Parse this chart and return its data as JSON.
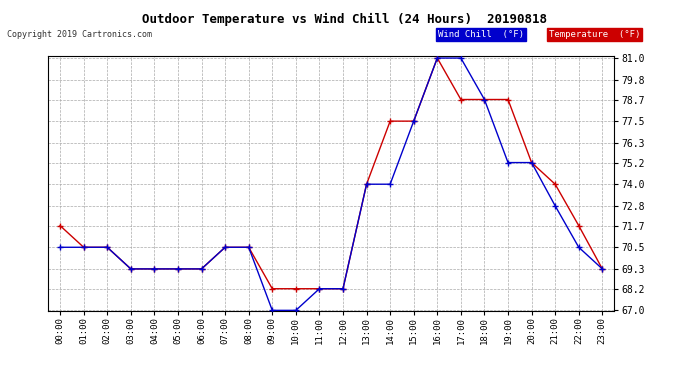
{
  "title": "Outdoor Temperature vs Wind Chill (24 Hours)  20190818",
  "copyright": "Copyright 2019 Cartronics.com",
  "background_color": "#ffffff",
  "plot_bg_color": "#ffffff",
  "grid_color": "#aaaaaa",
  "hours": [
    "00:00",
    "01:00",
    "02:00",
    "03:00",
    "04:00",
    "05:00",
    "06:00",
    "07:00",
    "08:00",
    "09:00",
    "10:00",
    "11:00",
    "12:00",
    "13:00",
    "14:00",
    "15:00",
    "16:00",
    "17:00",
    "18:00",
    "19:00",
    "20:00",
    "21:00",
    "22:00",
    "23:00"
  ],
  "temperature": [
    71.7,
    70.5,
    70.5,
    69.3,
    69.3,
    69.3,
    69.3,
    70.5,
    70.5,
    68.2,
    68.2,
    68.2,
    68.2,
    74.0,
    77.5,
    77.5,
    81.0,
    78.7,
    78.7,
    78.7,
    75.2,
    74.0,
    71.7,
    69.3
  ],
  "wind_chill": [
    70.5,
    70.5,
    70.5,
    69.3,
    69.3,
    69.3,
    69.3,
    70.5,
    70.5,
    67.0,
    67.0,
    68.2,
    68.2,
    74.0,
    74.0,
    77.5,
    81.0,
    81.0,
    78.7,
    75.2,
    75.2,
    72.8,
    70.5,
    69.3
  ],
  "temp_color": "#cc0000",
  "wind_color": "#0000cc",
  "ylim_min": 67.0,
  "ylim_max": 81.0,
  "yticks": [
    67.0,
    68.2,
    69.3,
    70.5,
    71.7,
    72.8,
    74.0,
    75.2,
    76.3,
    77.5,
    78.7,
    79.8,
    81.0
  ],
  "legend_wind_bg": "#0000cc",
  "legend_temp_bg": "#cc0000",
  "legend_wind_text": "Wind Chill  (°F)",
  "legend_temp_text": "Temperature  (°F)"
}
